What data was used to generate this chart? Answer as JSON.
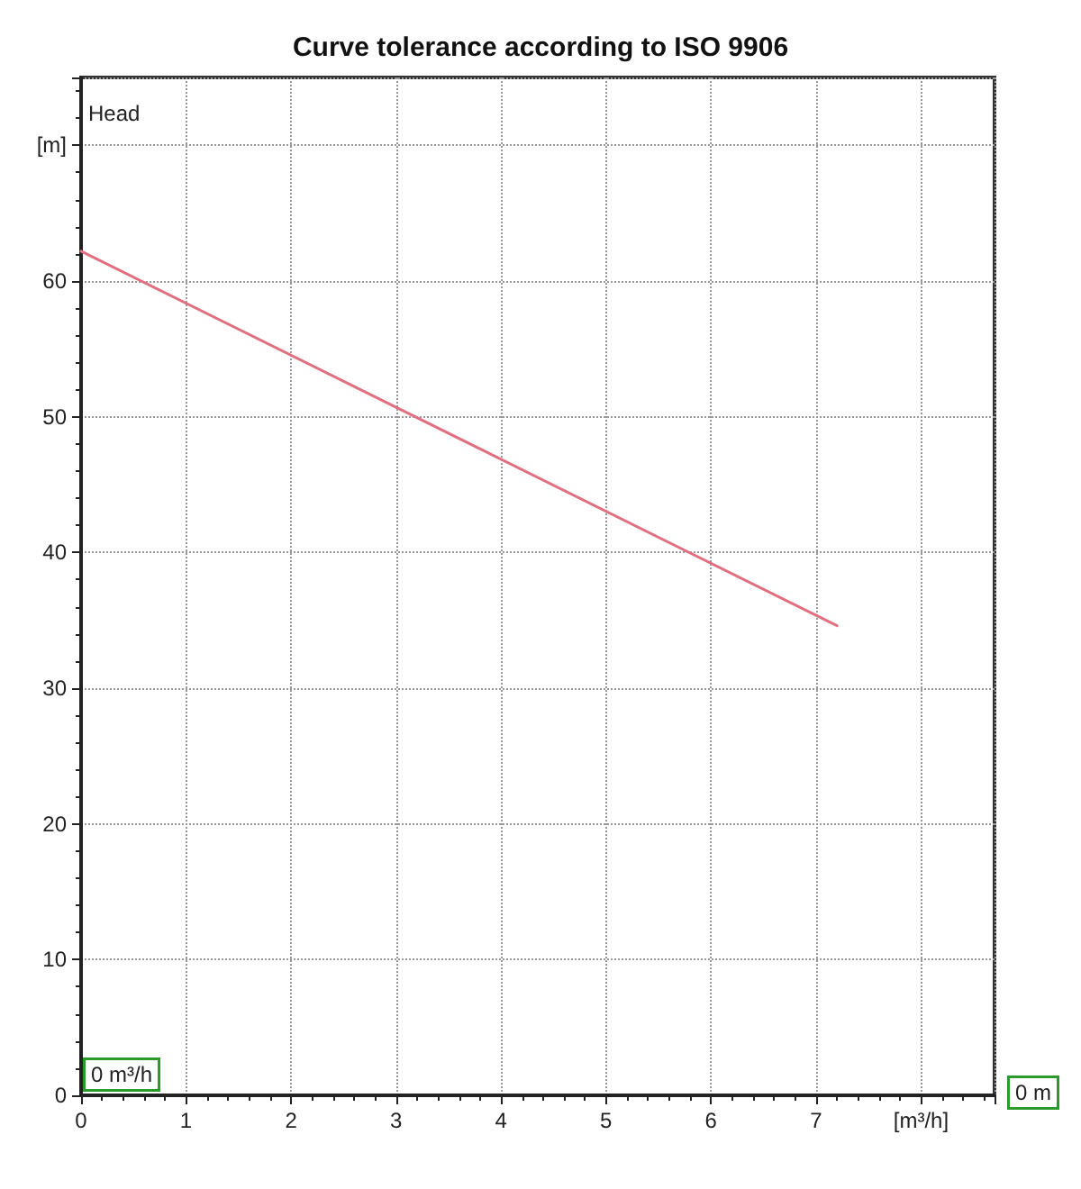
{
  "chart_data": {
    "type": "line",
    "title": "Curve tolerance according to ISO 9906",
    "ylabel": "Head",
    "x": [
      0,
      7.2
    ],
    "series": [
      {
        "color": "#e07080",
        "values": [
          62.2,
          34.6
        ]
      }
    ],
    "xlim": [
      0,
      8.7
    ],
    "xticks": [
      0,
      1,
      2,
      3,
      4,
      5,
      6,
      7,
      {
        "value": 8,
        "label": "[m³/h]"
      }
    ],
    "ylim": [
      0,
      75
    ],
    "yticks": [
      0,
      10,
      20,
      30,
      40,
      50,
      60,
      {
        "value": 70,
        "label": "[m]"
      }
    ],
    "grid": true,
    "marker": "none",
    "line_style": "solid",
    "annotations": [
      "0 m³/h",
      "0 m"
    ]
  }
}
